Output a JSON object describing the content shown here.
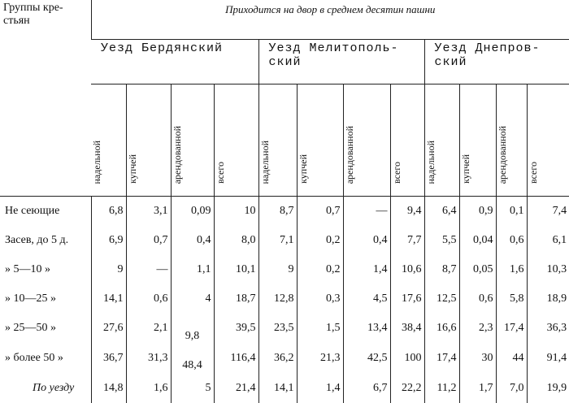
{
  "table": {
    "corner": "Группы кре-\nстьян",
    "title": "Приходится на двор в среднем десятин пашни",
    "counties": [
      "Уезд Бердянский",
      "Уезд Мелитополь-\nский",
      "Уезд Днепров-\nский"
    ],
    "subheaders": [
      "надельной",
      "купчей",
      "арендованной",
      "всего"
    ],
    "rows": [
      {
        "label": "Не сеющие",
        "cells": [
          "6,8",
          "3,1",
          "0,09",
          "10",
          "8,7",
          "0,7",
          "—",
          "9,4",
          "6,4",
          "0,9",
          "0,1",
          "7,4"
        ]
      },
      {
        "label": "Засев, до 5  д.",
        "cells": [
          "6,9",
          "0,7",
          "0,4",
          "8,0",
          "7,1",
          "0,2",
          "0,4",
          "7,7",
          "5,5",
          "0,04",
          "0,6",
          "6,1"
        ]
      },
      {
        "label": "»  5—10 »",
        "cells": [
          "9",
          "—",
          "1,1",
          "10,1",
          "9",
          "0,2",
          "1,4",
          "10,6",
          "8,7",
          "0,05",
          "1,6",
          "10,3"
        ]
      },
      {
        "label": "» 10—25 »",
        "cells": [
          "14,1",
          "0,6",
          "4",
          "18,7",
          "12,8",
          "0,3",
          "4,5",
          "17,6",
          "12,5",
          "0,6",
          "5,8",
          "18,9"
        ]
      },
      {
        "label": "» 25—50 »",
        "cells": [
          "27,6",
          "2,1",
          "9,8",
          "39,5",
          "23,5",
          "1,5",
          "13,4",
          "38,4",
          "16,6",
          "2,3",
          "17,4",
          "36,3"
        ]
      },
      {
        "label": "» более 50 »",
        "cells": [
          "36,7",
          "31,3",
          "48,4",
          "116,4",
          "36,2",
          "21,3",
          "42,5",
          "100",
          "17,4",
          "30",
          "44",
          "91,4"
        ]
      },
      {
        "label": "По уезду",
        "cells": [
          "14,8",
          "1,6",
          "5",
          "21,4",
          "14,1",
          "1,4",
          "6,7",
          "22,2",
          "11,2",
          "1,7",
          "7,0",
          "19,9"
        ]
      }
    ]
  }
}
